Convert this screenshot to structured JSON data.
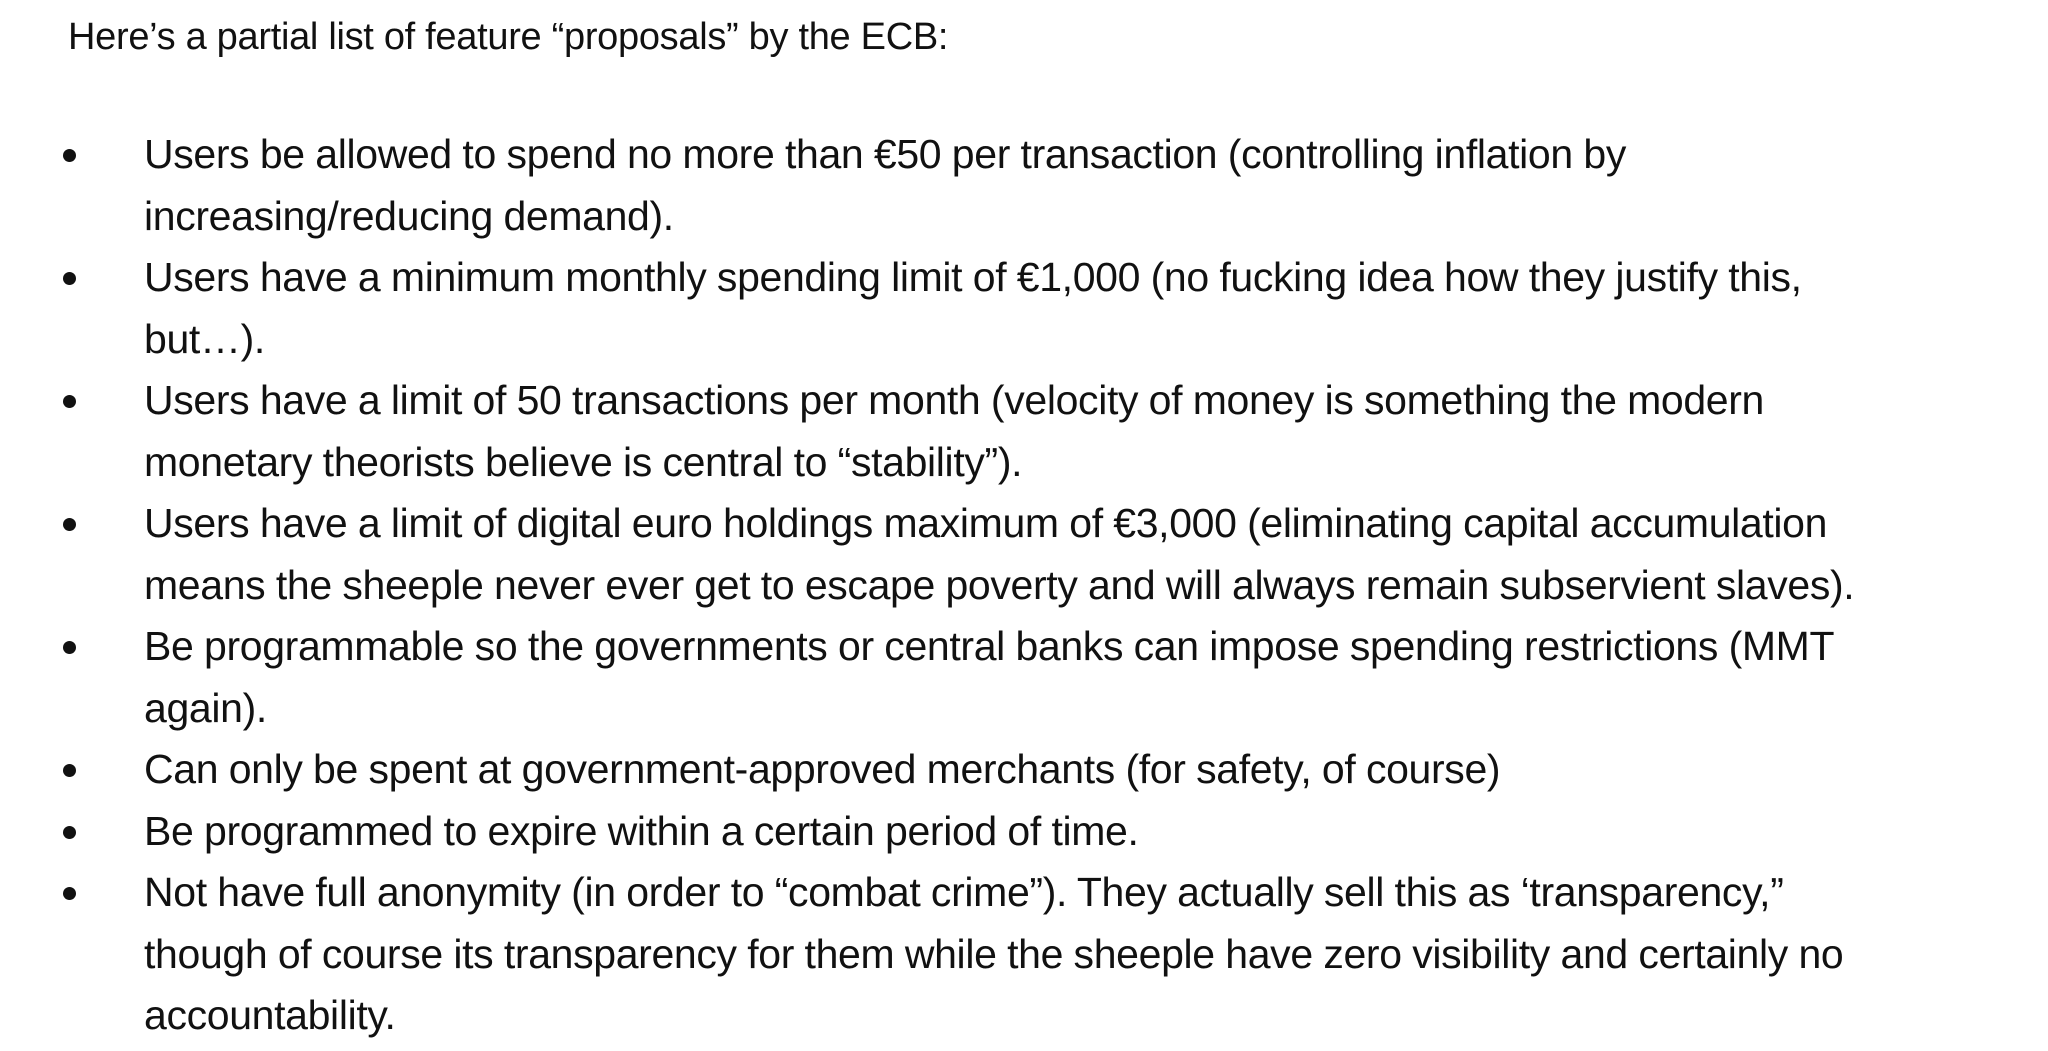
{
  "document": {
    "intro": "Here’s a partial list of feature “proposals” by the ECB:",
    "bullets": [
      {
        "lines": [
          "Users be allowed to spend no more than €50 per transaction (controlling inflation by",
          "increasing/reducing demand)."
        ]
      },
      {
        "lines": [
          "Users have a minimum monthly spending limit of €1,000 (no fucking idea how they justify this,",
          "but…)."
        ]
      },
      {
        "lines": [
          "Users have a limit of 50 transactions per month (velocity of money is something the modern",
          "monetary theorists believe is central to “stability”)."
        ]
      },
      {
        "lines": [
          "Users have a limit of digital euro holdings maximum of €3,000 (eliminating capital accumulation",
          "means the sheeple never ever get to escape poverty and will always remain subservient slaves)."
        ]
      },
      {
        "lines": [
          "Be programmable so the governments or central banks can impose spending restrictions (MMT",
          "again)."
        ]
      },
      {
        "lines": [
          "Can only be spent at government-approved merchants (for safety, of course)"
        ]
      },
      {
        "lines": [
          "Be programmed to expire within a certain period of time."
        ]
      },
      {
        "lines": [
          "Not have full anonymity (in order to “combat crime”). They actually sell this as ‘transparency,”",
          "though of course its transparency for them while the sheeple have zero visibility and certainly no",
          "accountability."
        ]
      }
    ]
  }
}
